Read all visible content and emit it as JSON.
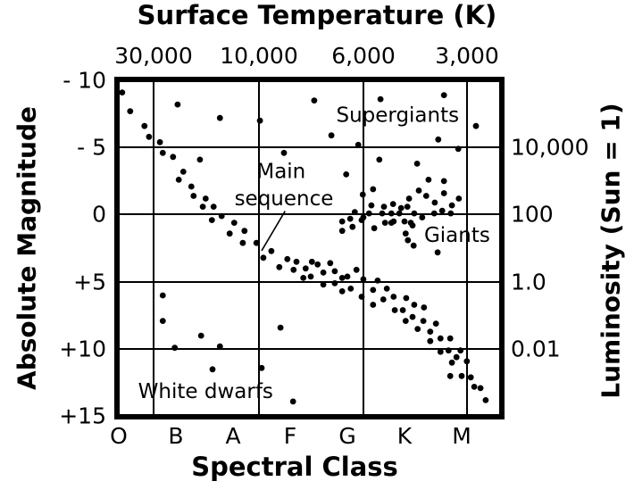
{
  "chart_data": {
    "type": "scatter",
    "title_top": "Surface Temperature (K)",
    "xlabel_bottom": "Spectral Class",
    "ylabel_left": "Absolute Magnitude",
    "ylabel_right": "Luminosity (Sun = 1)",
    "x_axis_top": {
      "ticks": [
        "30,000",
        "10,000",
        "6,000",
        "3,000"
      ]
    },
    "x_axis_bottom": {
      "ticks": [
        "O",
        "B",
        "A",
        "F",
        "G",
        "K",
        "M"
      ]
    },
    "y_axis_left": {
      "ticks": [
        "- 10",
        "- 5",
        "0",
        "+5",
        "+10",
        "+15"
      ],
      "values": [
        -10,
        -5,
        0,
        5,
        10,
        15
      ]
    },
    "y_axis_right": {
      "ticks": [
        "10,000",
        "100",
        "1.0",
        "0.01"
      ]
    },
    "grid": true,
    "axis_note": "points given as [spectral_class_position (O=0,B=1,A=2,F=3,G=4,K=5,M=6), absolute_magnitude]",
    "point_color": "#000000",
    "background": "#ffffff",
    "annotations": [
      {
        "text": "Supergiants",
        "c": 4.88,
        "m": -7.35
      },
      {
        "text": "Main",
        "c": 2.84,
        "m": -3.15
      },
      {
        "text": "sequence",
        "c": 2.89,
        "m": -1.15
      },
      {
        "text": "Giants",
        "c": 5.92,
        "m": 1.6
      },
      {
        "text": "White dwarfs",
        "c": 1.52,
        "m": 13.2
      }
    ],
    "arrow": {
      "from": [
        2.91,
        -0.27
      ],
      "to": [
        2.5,
        2.68
      ]
    },
    "series": [
      {
        "name": "Main sequence",
        "points": [
          [
            0.06,
            -9.1
          ],
          [
            0.2,
            -7.7
          ],
          [
            0.45,
            -6.6
          ],
          [
            0.53,
            -5.8
          ],
          [
            0.72,
            -5.4
          ],
          [
            0.77,
            -4.6
          ],
          [
            0.95,
            -4.3
          ],
          [
            1.42,
            -4.1
          ],
          [
            1.13,
            -3.2
          ],
          [
            1.05,
            -2.6
          ],
          [
            1.27,
            -2.1
          ],
          [
            1.31,
            -1.4
          ],
          [
            1.52,
            -1.2
          ],
          [
            1.47,
            -0.6
          ],
          [
            1.66,
            -0.6
          ],
          [
            1.63,
            0.4
          ],
          [
            1.8,
            0.1
          ],
          [
            2.02,
            0.6
          ],
          [
            1.94,
            1.4
          ],
          [
            2.2,
            1.2
          ],
          [
            2.17,
            2.1
          ],
          [
            2.41,
            2.1
          ],
          [
            2.53,
            3.2
          ],
          [
            2.67,
            2.7
          ],
          [
            2.81,
            3.9
          ],
          [
            2.95,
            3.3
          ],
          [
            3.11,
            3.5
          ],
          [
            3.06,
            4.1
          ],
          [
            3.27,
            4.0
          ],
          [
            3.38,
            3.5
          ],
          [
            3.48,
            3.7
          ],
          [
            3.23,
            4.7
          ],
          [
            3.36,
            4.6
          ],
          [
            3.58,
            4.3
          ],
          [
            3.7,
            3.6
          ],
          [
            3.78,
            4.2
          ],
          [
            3.58,
            5.2
          ],
          [
            3.78,
            5.1
          ],
          [
            3.91,
            4.7
          ],
          [
            4.0,
            4.6
          ],
          [
            4.16,
            4.1
          ],
          [
            4.28,
            4.8
          ],
          [
            3.91,
            5.7
          ],
          [
            4.06,
            5.5
          ],
          [
            4.25,
            6.1
          ],
          [
            4.53,
            4.9
          ],
          [
            4.45,
            5.6
          ],
          [
            4.69,
            5.5
          ],
          [
            4.45,
            6.7
          ],
          [
            4.63,
            6.3
          ],
          [
            4.81,
            6.1
          ],
          [
            5.03,
            6.2
          ],
          [
            4.83,
            7.1
          ],
          [
            4.97,
            7.1
          ],
          [
            5.17,
            6.7
          ],
          [
            5.34,
            6.9
          ],
          [
            5.02,
            7.9
          ],
          [
            5.14,
            7.6
          ],
          [
            5.33,
            7.9
          ],
          [
            5.23,
            8.5
          ],
          [
            5.55,
            8.1
          ],
          [
            5.45,
            8.7
          ],
          [
            5.45,
            9.4
          ],
          [
            5.63,
            9.2
          ],
          [
            5.8,
            9.2
          ],
          [
            5.63,
            10.2
          ],
          [
            5.77,
            10.1
          ],
          [
            5.98,
            10.1
          ],
          [
            5.91,
            10.6
          ],
          [
            5.83,
            11.0
          ],
          [
            6.09,
            10.9
          ],
          [
            5.8,
            12.0
          ],
          [
            6.0,
            12.0
          ],
          [
            6.16,
            12.1
          ],
          [
            6.22,
            12.8
          ],
          [
            6.33,
            12.9
          ],
          [
            6.42,
            13.8
          ]
        ]
      },
      {
        "name": "Supergiants",
        "points": [
          [
            1.03,
            -8.2
          ],
          [
            1.77,
            -7.2
          ],
          [
            2.47,
            -7.0
          ],
          [
            3.42,
            -8.5
          ],
          [
            4.58,
            -8.6
          ],
          [
            5.69,
            -8.9
          ],
          [
            6.25,
            -6.6
          ],
          [
            2.89,
            -4.6
          ],
          [
            3.72,
            -5.9
          ],
          [
            4.19,
            -5.2
          ],
          [
            5.59,
            -5.6
          ],
          [
            5.94,
            -4.9
          ]
        ]
      },
      {
        "name": "Giants",
        "points": [
          [
            4.56,
            -4.1
          ],
          [
            5.22,
            -3.8
          ],
          [
            3.98,
            -3.0
          ],
          [
            4.45,
            -1.9
          ],
          [
            4.27,
            -1.5
          ],
          [
            5.42,
            -2.6
          ],
          [
            5.69,
            -2.5
          ],
          [
            5.25,
            -1.8
          ],
          [
            5.38,
            -1.4
          ],
          [
            5.08,
            -1.2
          ],
          [
            5.69,
            -1.6
          ],
          [
            5.83,
            -0.7
          ],
          [
            5.95,
            -1.2
          ],
          [
            5.53,
            -0.9
          ],
          [
            4.42,
            -0.7
          ],
          [
            4.64,
            -0.6
          ],
          [
            4.8,
            -0.8
          ],
          [
            4.94,
            -0.5
          ],
          [
            5.05,
            -0.6
          ],
          [
            5.17,
            -0.1
          ],
          [
            4.91,
            -0.1
          ],
          [
            4.77,
            -0.1
          ],
          [
            4.61,
            -0.1
          ],
          [
            4.38,
            -0.1
          ],
          [
            4.25,
            0.4
          ],
          [
            4.13,
            -0.2
          ],
          [
            3.91,
            0.5
          ],
          [
            4.05,
            0.3
          ],
          [
            4.09,
            0.9
          ],
          [
            3.91,
            1.2
          ],
          [
            4.47,
            1.0
          ],
          [
            4.66,
            0.6
          ],
          [
            4.81,
            0.5
          ],
          [
            5.0,
            0.5
          ],
          [
            5.11,
            0.6
          ],
          [
            5.31,
            0.2
          ],
          [
            5.52,
            -0.1
          ],
          [
            5.66,
            -0.3
          ],
          [
            5.81,
            -0.1
          ],
          [
            5.02,
            1.4
          ],
          [
            5.14,
            0.8
          ],
          [
            5.06,
            1.9
          ],
          [
            5.16,
            2.3
          ],
          [
            5.58,
            2.8
          ],
          [
            4.77,
            0.6
          ],
          [
            4.28,
            0.2
          ]
        ]
      },
      {
        "name": "White dwarfs",
        "points": [
          [
            0.77,
            6.0
          ],
          [
            0.77,
            7.9
          ],
          [
            1.44,
            9.0
          ],
          [
            0.98,
            9.9
          ],
          [
            1.77,
            9.8
          ],
          [
            1.64,
            11.5
          ],
          [
            2.5,
            11.4
          ],
          [
            2.83,
            8.4
          ],
          [
            3.05,
            13.9
          ]
        ]
      }
    ]
  }
}
